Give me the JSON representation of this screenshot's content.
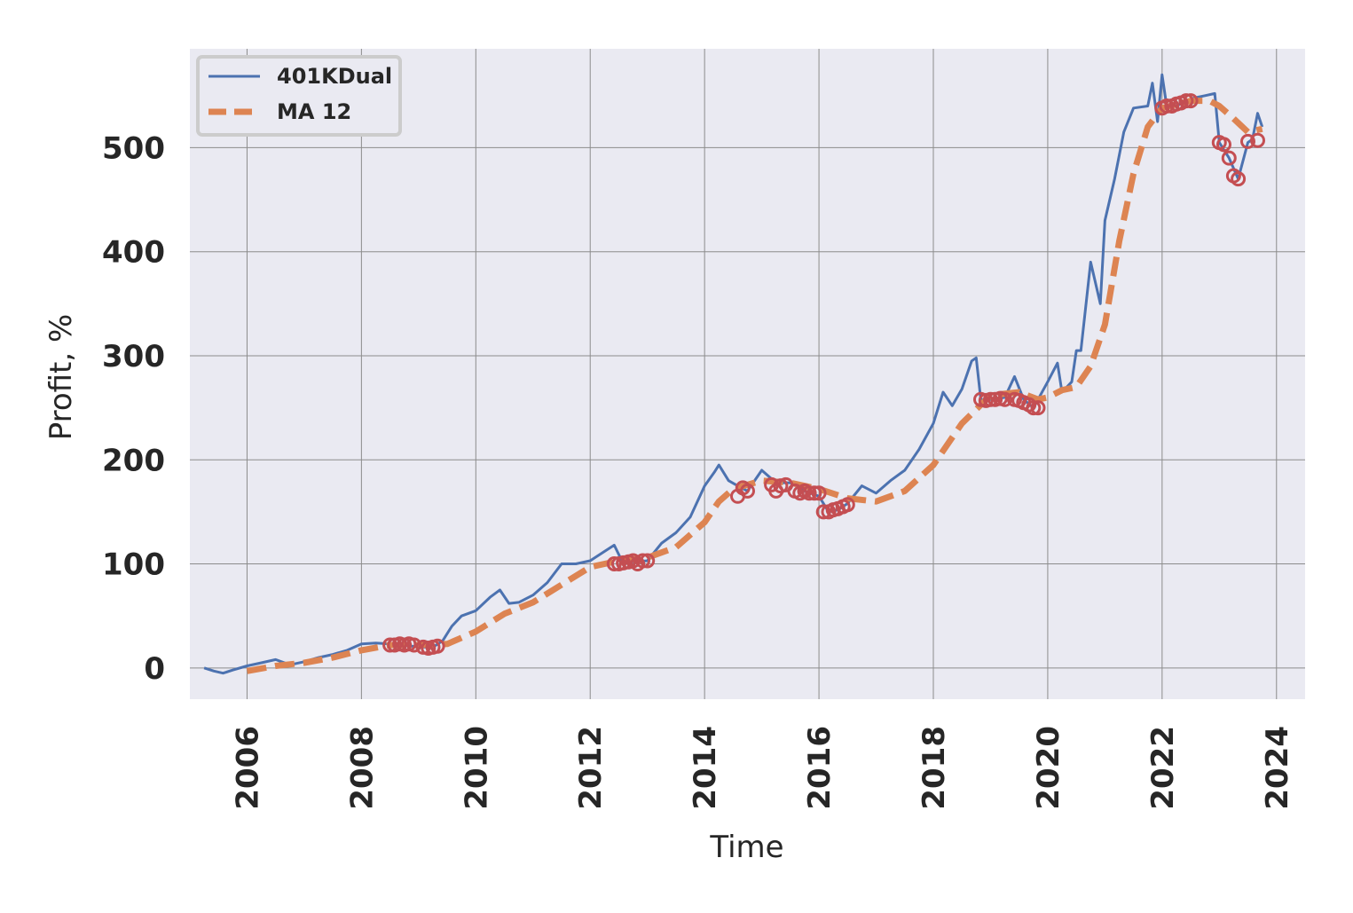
{
  "chart_data": {
    "type": "line",
    "xlabel": "Time",
    "ylabel": "Profit, %",
    "xlim": [
      2005.0,
      2024.5
    ],
    "ylim": [
      -30,
      595
    ],
    "x_ticks": [
      2006,
      2008,
      2010,
      2012,
      2014,
      2016,
      2018,
      2020,
      2022,
      2024
    ],
    "x_tick_labels": [
      "2006",
      "2008",
      "2010",
      "2012",
      "2014",
      "2016",
      "2018",
      "2020",
      "2022",
      "2024"
    ],
    "y_ticks": [
      0,
      100,
      200,
      300,
      400,
      500
    ],
    "y_tick_labels": [
      "0",
      "100",
      "200",
      "300",
      "400",
      "500"
    ],
    "grid": true,
    "legend_position": "top-left",
    "series": [
      {
        "name": "401KDual",
        "style": "solid",
        "color": "#4c72b0",
        "points": [
          [
            2005.25,
            0
          ],
          [
            2005.42,
            -3
          ],
          [
            2005.58,
            -5
          ],
          [
            2005.75,
            -2
          ],
          [
            2006.0,
            2
          ],
          [
            2006.25,
            5
          ],
          [
            2006.5,
            8
          ],
          [
            2006.75,
            3
          ],
          [
            2007.0,
            6
          ],
          [
            2007.25,
            10
          ],
          [
            2007.5,
            13
          ],
          [
            2007.75,
            17
          ],
          [
            2008.0,
            23
          ],
          [
            2008.25,
            24
          ],
          [
            2008.5,
            23
          ],
          [
            2008.75,
            22
          ],
          [
            2009.0,
            20
          ],
          [
            2009.25,
            20
          ],
          [
            2009.42,
            26
          ],
          [
            2009.58,
            40
          ],
          [
            2009.75,
            50
          ],
          [
            2010.0,
            55
          ],
          [
            2010.25,
            68
          ],
          [
            2010.42,
            75
          ],
          [
            2010.58,
            62
          ],
          [
            2010.75,
            63
          ],
          [
            2011.0,
            70
          ],
          [
            2011.25,
            82
          ],
          [
            2011.5,
            100
          ],
          [
            2011.75,
            100
          ],
          [
            2012.0,
            103
          ],
          [
            2012.25,
            112
          ],
          [
            2012.42,
            118
          ],
          [
            2012.58,
            100
          ],
          [
            2012.75,
            102
          ],
          [
            2013.0,
            103
          ],
          [
            2013.25,
            120
          ],
          [
            2013.5,
            130
          ],
          [
            2013.75,
            145
          ],
          [
            2014.0,
            175
          ],
          [
            2014.17,
            188
          ],
          [
            2014.25,
            195
          ],
          [
            2014.42,
            180
          ],
          [
            2014.58,
            175
          ],
          [
            2014.75,
            170
          ],
          [
            2015.0,
            190
          ],
          [
            2015.25,
            178
          ],
          [
            2015.5,
            178
          ],
          [
            2015.75,
            170
          ],
          [
            2016.0,
            165
          ],
          [
            2016.17,
            150
          ],
          [
            2016.33,
            152
          ],
          [
            2016.5,
            158
          ],
          [
            2016.75,
            175
          ],
          [
            2017.0,
            168
          ],
          [
            2017.25,
            180
          ],
          [
            2017.5,
            190
          ],
          [
            2017.75,
            210
          ],
          [
            2018.0,
            235
          ],
          [
            2018.17,
            265
          ],
          [
            2018.33,
            252
          ],
          [
            2018.5,
            268
          ],
          [
            2018.67,
            295
          ],
          [
            2018.75,
            298
          ],
          [
            2018.83,
            258
          ],
          [
            2019.0,
            258
          ],
          [
            2019.25,
            260
          ],
          [
            2019.42,
            280
          ],
          [
            2019.58,
            258
          ],
          [
            2019.75,
            250
          ],
          [
            2020.0,
            275
          ],
          [
            2020.17,
            293
          ],
          [
            2020.25,
            265
          ],
          [
            2020.42,
            275
          ],
          [
            2020.5,
            305
          ],
          [
            2020.58,
            305
          ],
          [
            2020.75,
            390
          ],
          [
            2020.92,
            350
          ],
          [
            2021.0,
            430
          ],
          [
            2021.17,
            470
          ],
          [
            2021.33,
            515
          ],
          [
            2021.5,
            538
          ],
          [
            2021.75,
            540
          ],
          [
            2021.83,
            562
          ],
          [
            2021.92,
            525
          ],
          [
            2022.0,
            570
          ],
          [
            2022.08,
            540
          ],
          [
            2022.25,
            540
          ],
          [
            2022.42,
            545
          ],
          [
            2022.58,
            548
          ],
          [
            2022.75,
            550
          ],
          [
            2022.92,
            552
          ],
          [
            2023.0,
            505
          ],
          [
            2023.17,
            490
          ],
          [
            2023.33,
            470
          ],
          [
            2023.5,
            505
          ],
          [
            2023.58,
            508
          ],
          [
            2023.67,
            533
          ],
          [
            2023.75,
            520
          ]
        ]
      },
      {
        "name": "MA 12",
        "style": "dashed",
        "color": "#dd8452",
        "points": [
          [
            2006.0,
            -3
          ],
          [
            2006.5,
            2
          ],
          [
            2007.0,
            5
          ],
          [
            2007.5,
            10
          ],
          [
            2008.0,
            17
          ],
          [
            2008.5,
            22
          ],
          [
            2009.0,
            22
          ],
          [
            2009.5,
            23
          ],
          [
            2010.0,
            35
          ],
          [
            2010.5,
            52
          ],
          [
            2011.0,
            63
          ],
          [
            2011.5,
            80
          ],
          [
            2012.0,
            97
          ],
          [
            2012.5,
            103
          ],
          [
            2013.0,
            106
          ],
          [
            2013.5,
            116
          ],
          [
            2014.0,
            140
          ],
          [
            2014.25,
            160
          ],
          [
            2014.5,
            172
          ],
          [
            2015.0,
            180
          ],
          [
            2015.5,
            178
          ],
          [
            2016.0,
            172
          ],
          [
            2016.5,
            163
          ],
          [
            2017.0,
            160
          ],
          [
            2017.5,
            170
          ],
          [
            2018.0,
            195
          ],
          [
            2018.5,
            235
          ],
          [
            2019.0,
            262
          ],
          [
            2019.5,
            265
          ],
          [
            2019.83,
            258
          ],
          [
            2020.0,
            260
          ],
          [
            2020.25,
            267
          ],
          [
            2020.5,
            270
          ],
          [
            2020.75,
            290
          ],
          [
            2021.0,
            330
          ],
          [
            2021.25,
            410
          ],
          [
            2021.5,
            475
          ],
          [
            2021.75,
            520
          ],
          [
            2022.0,
            538
          ],
          [
            2022.5,
            545
          ],
          [
            2022.83,
            545
          ],
          [
            2023.0,
            540
          ],
          [
            2023.25,
            528
          ],
          [
            2023.5,
            515
          ],
          [
            2023.75,
            518
          ]
        ]
      }
    ],
    "markers": {
      "shape": "circle-outline",
      "color": "#c44e52",
      "points": [
        [
          2008.5,
          22
        ],
        [
          2008.58,
          22
        ],
        [
          2008.67,
          23
        ],
        [
          2008.75,
          22
        ],
        [
          2008.83,
          23
        ],
        [
          2008.92,
          22
        ],
        [
          2009.08,
          20
        ],
        [
          2009.17,
          19
        ],
        [
          2009.25,
          20
        ],
        [
          2009.33,
          21
        ],
        [
          2012.42,
          100
        ],
        [
          2012.5,
          100
        ],
        [
          2012.58,
          101
        ],
        [
          2012.67,
          102
        ],
        [
          2012.75,
          103
        ],
        [
          2012.83,
          100
        ],
        [
          2012.92,
          103
        ],
        [
          2013.0,
          103
        ],
        [
          2014.58,
          165
        ],
        [
          2014.67,
          173
        ],
        [
          2014.75,
          170
        ],
        [
          2015.17,
          176
        ],
        [
          2015.25,
          170
        ],
        [
          2015.33,
          175
        ],
        [
          2015.42,
          176
        ],
        [
          2015.58,
          170
        ],
        [
          2015.67,
          168
        ],
        [
          2015.75,
          170
        ],
        [
          2015.83,
          168
        ],
        [
          2015.92,
          168
        ],
        [
          2016.0,
          168
        ],
        [
          2016.08,
          150
        ],
        [
          2016.17,
          150
        ],
        [
          2016.25,
          152
        ],
        [
          2016.33,
          153
        ],
        [
          2016.42,
          155
        ],
        [
          2016.5,
          157
        ],
        [
          2018.83,
          258
        ],
        [
          2018.92,
          257
        ],
        [
          2019.0,
          258
        ],
        [
          2019.08,
          258
        ],
        [
          2019.17,
          259
        ],
        [
          2019.25,
          258
        ],
        [
          2019.42,
          258
        ],
        [
          2019.5,
          257
        ],
        [
          2019.58,
          255
        ],
        [
          2019.67,
          253
        ],
        [
          2019.75,
          250
        ],
        [
          2019.83,
          250
        ],
        [
          2022.0,
          538
        ],
        [
          2022.08,
          540
        ],
        [
          2022.17,
          540
        ],
        [
          2022.25,
          542
        ],
        [
          2022.33,
          543
        ],
        [
          2022.42,
          545
        ],
        [
          2022.5,
          545
        ],
        [
          2023.0,
          505
        ],
        [
          2023.08,
          503
        ],
        [
          2023.17,
          490
        ],
        [
          2023.25,
          473
        ],
        [
          2023.33,
          470
        ],
        [
          2023.5,
          506
        ],
        [
          2023.67,
          507
        ]
      ]
    }
  }
}
